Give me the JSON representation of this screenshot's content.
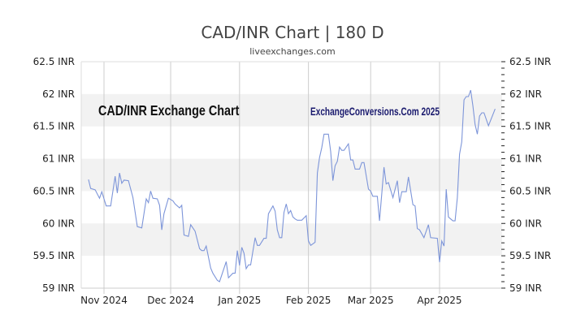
{
  "chart_data": {
    "type": "line",
    "title": "CAD/INR Chart | 180 D",
    "subtitle": "liveexchanges.com",
    "watermark_left": "CAD/INR Exchange Chart",
    "watermark_right": "ExchangeConversions.Com 2025",
    "x_unit": "days since 2024-10-01",
    "xlim": [
      20,
      210
    ],
    "ylim": [
      59,
      62.5
    ],
    "grid": true,
    "x_ticks": [
      {
        "label": "Nov 2024",
        "day": 31
      },
      {
        "label": "Dec 2024",
        "day": 61
      },
      {
        "label": "Jan 2025",
        "day": 92
      },
      {
        "label": "Feb 2025",
        "day": 123
      },
      {
        "label": "Mar 2025",
        "day": 151
      },
      {
        "label": "Apr 2025",
        "day": 182
      }
    ],
    "y_ticks": [
      {
        "label": "62.5 INR",
        "value": 62.5
      },
      {
        "label": "62 INR",
        "value": 62
      },
      {
        "label": "61.5 INR",
        "value": 61.5
      },
      {
        "label": "61 INR",
        "value": 61
      },
      {
        "label": "60.5 INR",
        "value": 60.5
      },
      {
        "label": "60 INR",
        "value": 60
      },
      {
        "label": "59.5 INR",
        "value": 59.5
      },
      {
        "label": "59 INR",
        "value": 59
      }
    ],
    "series": [
      {
        "name": "CAD/INR",
        "color": "#7d95d9",
        "x": [
          24,
          25,
          27,
          29,
          30,
          32,
          34,
          36,
          37,
          38,
          39,
          40,
          42,
          44,
          46,
          48,
          50,
          51,
          52,
          53,
          55,
          56,
          57,
          58,
          60,
          62,
          63,
          65,
          66,
          67,
          69,
          70,
          72,
          74,
          75,
          76,
          77,
          79,
          80,
          82,
          83,
          86,
          87,
          89,
          90,
          91,
          92,
          93,
          94,
          95,
          96,
          97,
          99,
          100,
          101,
          103,
          104,
          105,
          107,
          108,
          109,
          110,
          111,
          112,
          113,
          114,
          115,
          116,
          117,
          118,
          120,
          122,
          123,
          124,
          126,
          127,
          128,
          129,
          130,
          132,
          133,
          134,
          135,
          136,
          137,
          138,
          139,
          141,
          142,
          143,
          144,
          146,
          147,
          148,
          150,
          151,
          152,
          154,
          155,
          157,
          158,
          159,
          161,
          163,
          164,
          165,
          167,
          168,
          170,
          171,
          172,
          173,
          175,
          177,
          178,
          181,
          182,
          183,
          184,
          185,
          186,
          188,
          189,
          190,
          191,
          192,
          193,
          194,
          195,
          196,
          197,
          198,
          199,
          200,
          201,
          202,
          204,
          207
        ],
        "values": [
          60.68,
          60.54,
          60.52,
          60.39,
          60.49,
          60.27,
          60.27,
          60.73,
          60.47,
          60.78,
          60.62,
          60.67,
          60.66,
          60.4,
          59.95,
          59.93,
          60.38,
          60.32,
          60.5,
          60.39,
          60.38,
          60.28,
          59.9,
          60.15,
          60.39,
          60.35,
          60.3,
          60.24,
          60.28,
          59.82,
          59.8,
          59.98,
          59.88,
          59.61,
          59.58,
          59.58,
          59.65,
          59.31,
          59.23,
          59.12,
          59.1,
          59.41,
          59.16,
          59.23,
          59.23,
          59.58,
          59.35,
          59.63,
          59.54,
          59.3,
          59.36,
          59.36,
          59.78,
          59.66,
          59.66,
          59.77,
          59.77,
          60.15,
          60.27,
          60.19,
          59.9,
          59.78,
          59.78,
          60.17,
          60.3,
          60.15,
          60.2,
          60.1,
          60.07,
          60.05,
          60.05,
          60.12,
          59.73,
          59.66,
          59.71,
          60.78,
          61.02,
          61.17,
          61.38,
          61.38,
          61.11,
          60.66,
          60.89,
          60.96,
          61.18,
          61.13,
          61.13,
          61.23,
          60.98,
          60.98,
          60.84,
          60.84,
          60.94,
          60.94,
          60.53,
          60.5,
          60.42,
          60.42,
          60.04,
          60.87,
          60.61,
          60.63,
          60.4,
          60.66,
          60.32,
          60.49,
          60.49,
          60.72,
          60.29,
          60.27,
          59.92,
          59.9,
          59.78,
          59.98,
          59.78,
          59.77,
          59.4,
          59.73,
          59.65,
          60.53,
          60.1,
          60.04,
          60.04,
          60.4,
          61.07,
          61.26,
          61.91,
          61.96,
          61.96,
          62.06,
          61.82,
          61.53,
          61.38,
          61.66,
          61.71,
          61.71,
          61.51,
          61.77
        ]
      }
    ],
    "colors": {
      "band": "#f2f2f2",
      "grid": "#cccccc",
      "watermark_right": "#1a1a6e"
    }
  }
}
